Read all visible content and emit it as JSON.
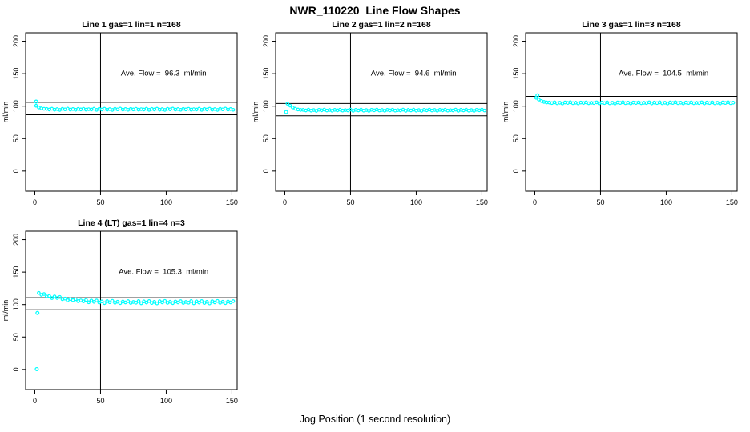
{
  "figure": {
    "title": "NWR_110220  Line Flow Shapes",
    "xlabel": "Jog Position (1 second resolution)",
    "background": "#ffffff"
  },
  "chart_data": {
    "type": "scatter",
    "point_color": "#00ffff",
    "axis_color": "#000000",
    "ylabel": "ml/min",
    "x_ticks": [
      0,
      50,
      100,
      150
    ],
    "y_ticks": [
      0,
      50,
      100,
      150,
      200
    ],
    "x_range": [
      -7,
      154
    ],
    "y_range": [
      -31,
      213
    ],
    "vline_x": 50,
    "legend_position": "none",
    "grid": false,
    "panels": [
      {
        "title": "Line 1 gas=1 lin=1 n=168",
        "ave_flow": 96.3,
        "annotation": "Ave. Flow =  96.3  ml/min",
        "ref_upper": 105.9,
        "ref_lower": 86.7,
        "outliers": [
          [
            1,
            107.0
          ]
        ],
        "band": {
          "x_start": 1,
          "x_step": 2,
          "y": [
            100.6,
            98.0,
            96.6,
            95.9,
            95.7,
            94.8,
            96.0,
            94.5,
            95.4,
            94.2,
            95.8,
            95.0,
            96.1,
            94.7,
            95.5,
            94.4,
            95.7,
            94.9,
            95.9,
            94.6,
            95.3,
            94.8,
            96.0,
            94.3,
            95.7,
            94.8,
            96.0,
            94.5,
            95.4,
            94.2,
            95.8,
            95.0,
            96.1,
            94.7,
            95.5,
            94.4,
            95.7,
            94.9,
            95.9,
            94.6,
            95.3,
            94.8,
            96.0,
            94.3,
            95.7,
            94.8,
            96.0,
            94.5,
            95.4,
            94.2,
            95.8,
            95.0,
            96.1,
            94.7,
            95.5,
            94.4,
            95.7,
            94.9,
            95.9,
            94.6,
            95.3,
            94.8,
            96.0,
            94.3,
            95.7,
            94.8,
            96.0,
            94.5,
            95.4,
            94.2,
            95.8,
            95.0,
            96.1,
            94.7,
            95.5,
            94.4
          ]
        }
      },
      {
        "title": "Line 2 gas=1 lin=2 n=168",
        "ave_flow": 94.6,
        "annotation": "Ave. Flow =  94.6  ml/min",
        "ref_upper": 104.1,
        "ref_lower": 85.1,
        "outliers": [
          [
            1,
            91.0
          ]
        ],
        "band": {
          "x_start": 2,
          "x_step": 2,
          "y": [
            103.8,
            100.8,
            98.0,
            96.0,
            94.8,
            94.2,
            94.3,
            93.4,
            94.6,
            93.1,
            94.0,
            92.8,
            94.4,
            93.6,
            94.7,
            93.3,
            94.1,
            93.0,
            94.3,
            93.5,
            94.5,
            93.2,
            93.9,
            93.4,
            94.6,
            92.9,
            94.3,
            93.4,
            94.6,
            93.1,
            94.0,
            92.8,
            94.4,
            93.6,
            94.7,
            93.3,
            94.1,
            93.0,
            94.3,
            93.5,
            94.5,
            93.2,
            93.9,
            93.4,
            94.6,
            92.9,
            94.3,
            93.4,
            94.6,
            93.1,
            94.0,
            92.8,
            94.4,
            93.6,
            94.7,
            93.3,
            94.1,
            93.0,
            94.3,
            93.5,
            94.5,
            93.2,
            93.9,
            93.4,
            94.6,
            92.9,
            94.3,
            93.4,
            94.6,
            93.1,
            94.0,
            92.8,
            94.4,
            93.6,
            94.7,
            93.3
          ]
        }
      },
      {
        "title": "Line 3 gas=1 lin=3 n=168",
        "ave_flow": 104.5,
        "annotation": "Ave. Flow =  104.5  ml/min",
        "ref_upper": 115.0,
        "ref_lower": 94.1,
        "outliers": [
          [
            2,
            116.5
          ]
        ],
        "band": {
          "x_start": 1,
          "x_step": 2,
          "y": [
            112.8,
            110.2,
            107.9,
            106.5,
            105.7,
            105.6,
            104.7,
            105.9,
            104.4,
            105.3,
            104.1,
            105.7,
            104.9,
            106.0,
            104.6,
            105.4,
            104.3,
            105.6,
            104.8,
            105.8,
            104.5,
            105.2,
            104.7,
            105.9,
            104.2,
            105.6,
            104.7,
            105.9,
            104.4,
            105.3,
            104.1,
            105.7,
            104.9,
            106.0,
            104.6,
            105.4,
            104.3,
            105.6,
            104.8,
            105.8,
            104.5,
            105.2,
            104.7,
            105.9,
            104.2,
            105.6,
            104.7,
            105.9,
            104.4,
            105.3,
            104.1,
            105.7,
            104.9,
            106.0,
            104.6,
            105.4,
            104.3,
            105.6,
            104.8,
            105.8,
            104.5,
            105.2,
            104.7,
            105.9,
            104.2,
            105.6,
            104.7,
            105.9,
            104.4,
            105.3,
            104.1,
            105.7,
            104.9,
            106.0,
            104.6,
            105.4
          ]
        }
      },
      {
        "title": "Line 4 (LT) gas=1 lin=4 n=3",
        "ave_flow": 105.3,
        "annotation": "Ave. Flow =  105.3  ml/min",
        "ref_upper": 110.5,
        "ref_lower": 92.0,
        "outliers": [
          [
            1.5,
            0.5
          ],
          [
            2,
            87.0
          ]
        ],
        "band": {
          "x_start": 3,
          "x_step": 2,
          "y": [
            117.9,
            115.0,
            116.2,
            112.3,
            113.2,
            110.0,
            112.5,
            110.1,
            111.7,
            108.2,
            109.2,
            106.6,
            108.6,
            106.8,
            108.3,
            105.2,
            106.4,
            105.0,
            107.2,
            103.5,
            106.2,
            104.2,
            106.3,
            103.1,
            104.8,
            102.2,
            105.4,
            103.6,
            105.8,
            102.8,
            104.3,
            102.2,
            104.7,
            103.3,
            105.2,
            102.5,
            104.0,
            102.9,
            105.4,
            102.0,
            104.9,
            103.1,
            105.4,
            102.4,
            104.2,
            101.8,
            105.1,
            103.4,
            105.6,
            102.7,
            104.3,
            102.2,
            104.7,
            103.3,
            105.2,
            102.5,
            104.0,
            102.9,
            105.4,
            102.0,
            104.9,
            103.1,
            105.4,
            102.4,
            104.2,
            101.8,
            105.1,
            103.4,
            105.6,
            102.7,
            104.3,
            102.2,
            104.7,
            103.3,
            105.2
          ]
        }
      }
    ]
  }
}
